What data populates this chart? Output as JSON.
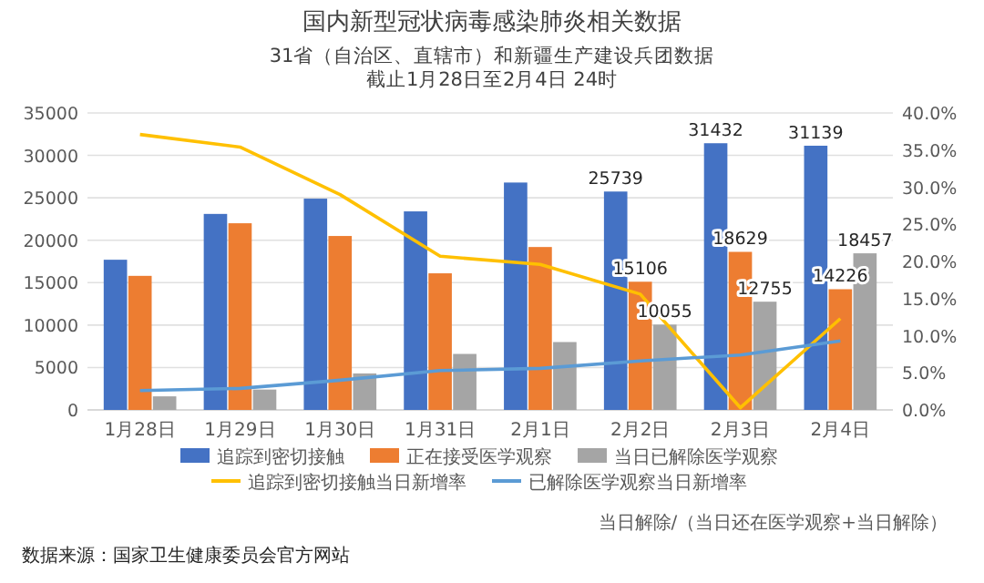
{
  "chart_data": {
    "type": "bar",
    "title": "国内新型冠状病毒感染肺炎相关数据",
    "subtitle": "31省（自治区、直辖市）和新疆生产建设兵团数据",
    "categories": [
      "1月28日",
      "1月29日",
      "1月30日",
      "1月31日",
      "2月1日",
      "2月2日",
      "2月3日",
      "2月4日"
    ],
    "series": [
      {
        "name": "追踪到密切接触",
        "color": "#4472c4",
        "values": [
          17700,
          23100,
          24900,
          23400,
          26800,
          25739,
          31432,
          31139
        ],
        "value_labels": [
          null,
          null,
          null,
          null,
          null,
          "25739",
          "31432",
          "31139"
        ]
      },
      {
        "name": "正在接受医学观察",
        "color": "#ed7d31",
        "values": [
          15800,
          22000,
          20500,
          16100,
          19200,
          15106,
          18629,
          14226
        ],
        "value_labels": [
          null,
          null,
          null,
          null,
          null,
          "15106",
          "18629",
          "14226"
        ]
      },
      {
        "name": "当日已解除医学观察",
        "color": "#a5a5a5",
        "values": [
          1600,
          2400,
          4300,
          6600,
          8000,
          10055,
          12755,
          18457
        ],
        "value_labels": [
          null,
          null,
          null,
          null,
          null,
          "10055",
          "12755",
          "18457"
        ]
      },
      {
        "name": "追踪到密切接触当日新增率",
        "type": "line",
        "axis": "y2",
        "color": "#ffc000",
        "values": [
          37.1,
          35.4,
          29.0,
          20.7,
          19.6,
          15.6,
          0.3,
          12.3
        ]
      },
      {
        "name": "已解除医学观察当日新增率",
        "type": "line",
        "axis": "y2",
        "color": "#5b9bd5",
        "values": [
          2.6,
          2.9,
          4.0,
          5.3,
          5.6,
          6.6,
          7.4,
          9.3
        ]
      }
    ],
    "ylim": [
      0,
      35000
    ],
    "yticks": [
      0,
      5000,
      10000,
      15000,
      20000,
      25000,
      30000,
      35000
    ],
    "y2lim": [
      0,
      40
    ],
    "y2ticks": [
      {
        "value": 0,
        "label": "0.0%"
      },
      {
        "value": 5,
        "label": "5.0%"
      },
      {
        "value": 10,
        "label": "10.0%"
      },
      {
        "value": 15,
        "label": "15.0%"
      },
      {
        "value": 20,
        "label": "20.0%"
      },
      {
        "value": 25,
        "label": "25.0%"
      },
      {
        "value": 30,
        "label": "30.0%"
      },
      {
        "value": 35,
        "label": "35.0%"
      },
      {
        "value": 40,
        "label": "40.0%"
      }
    ],
    "grid": "y",
    "legend": "bottom",
    "marker": "none",
    "line_style": "solid",
    "annotations": [
      "截止1月28日至2月4日 24时",
      "当日解除/（当日还在医学观察+当日解除）",
      "数据来源：国家卫生健康委员会官方网站"
    ]
  }
}
